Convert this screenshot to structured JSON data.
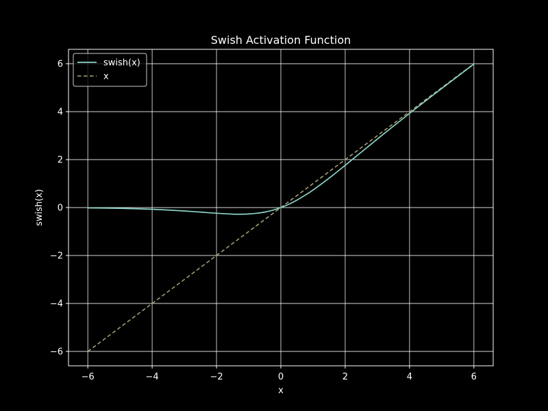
{
  "chart_data": {
    "type": "line",
    "title": "Swish Activation Function",
    "xlabel": "x",
    "ylabel": "swish(x)",
    "xlim": [
      -6.6,
      6.6
    ],
    "ylim": [
      -6.6,
      6.6
    ],
    "xticks": [
      -6,
      -4,
      -2,
      0,
      2,
      4,
      6
    ],
    "yticks": [
      -6,
      -4,
      -2,
      0,
      2,
      4,
      6
    ],
    "xtick_labels": [
      "−6",
      "−4",
      "−2",
      "0",
      "2",
      "4",
      "6"
    ],
    "ytick_labels": [
      "−6",
      "−4",
      "−2",
      "0",
      "2",
      "4",
      "6"
    ],
    "grid": true,
    "legend_position": "top-left",
    "background": "#000000",
    "foreground": "#ffffff",
    "series": [
      {
        "name": "swish(x)",
        "style": "solid",
        "color": "#8dd3c7",
        "x": [
          -6,
          -5.5,
          -5,
          -4.5,
          -4,
          -3.5,
          -3,
          -2.5,
          -2,
          -1.5,
          -1.25,
          -1,
          -0.75,
          -0.5,
          -0.25,
          0,
          0.25,
          0.5,
          0.75,
          1,
          1.5,
          2,
          2.5,
          3,
          3.5,
          4,
          4.5,
          5,
          5.5,
          6
        ],
        "y": [
          -0.015,
          -0.022,
          -0.033,
          -0.049,
          -0.072,
          -0.103,
          -0.142,
          -0.19,
          -0.238,
          -0.274,
          -0.278,
          -0.269,
          -0.238,
          -0.189,
          -0.11,
          0,
          0.14,
          0.311,
          0.512,
          0.731,
          1.226,
          1.762,
          2.31,
          2.858,
          3.397,
          3.928,
          4.451,
          4.967,
          5.478,
          5.985
        ]
      },
      {
        "name": "x",
        "style": "dashed",
        "color": "#a8a87a",
        "x": [
          -6,
          6
        ],
        "y": [
          -6,
          6
        ]
      }
    ]
  }
}
